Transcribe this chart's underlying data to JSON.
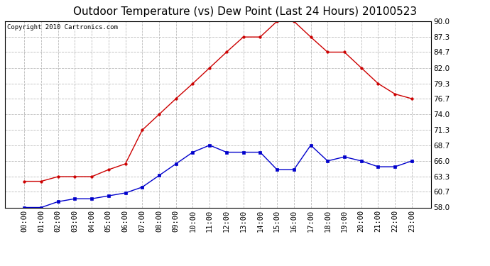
{
  "title": "Outdoor Temperature (vs) Dew Point (Last 24 Hours) 20100523",
  "copyright": "Copyright 2010 Cartronics.com",
  "hours": [
    "00:00",
    "01:00",
    "02:00",
    "03:00",
    "04:00",
    "05:00",
    "06:00",
    "07:00",
    "08:00",
    "09:00",
    "10:00",
    "11:00",
    "12:00",
    "13:00",
    "14:00",
    "15:00",
    "16:00",
    "17:00",
    "18:00",
    "19:00",
    "20:00",
    "21:00",
    "22:00",
    "23:00"
  ],
  "temp": [
    62.5,
    62.5,
    63.3,
    63.3,
    63.3,
    64.5,
    65.5,
    71.3,
    74.0,
    76.7,
    79.3,
    82.0,
    84.7,
    87.3,
    87.3,
    90.0,
    90.0,
    87.3,
    84.7,
    84.7,
    82.0,
    79.3,
    77.5,
    76.7
  ],
  "dew": [
    58.0,
    58.0,
    59.0,
    59.5,
    59.5,
    60.0,
    60.5,
    61.5,
    63.5,
    65.5,
    67.5,
    68.7,
    67.5,
    67.5,
    67.5,
    64.5,
    64.5,
    68.7,
    66.0,
    66.7,
    66.0,
    65.0,
    65.0,
    66.0
  ],
  "temp_color": "#cc0000",
  "dew_color": "#0000cc",
  "bg_color": "#ffffff",
  "plot_bg": "#ffffff",
  "grid_color": "#bbbbbb",
  "ylim": [
    58.0,
    90.0
  ],
  "yticks": [
    58.0,
    60.7,
    63.3,
    66.0,
    68.7,
    71.3,
    74.0,
    76.7,
    79.3,
    82.0,
    84.7,
    87.3,
    90.0
  ],
  "title_fontsize": 11,
  "copyright_fontsize": 6.5,
  "tick_fontsize": 7.5
}
